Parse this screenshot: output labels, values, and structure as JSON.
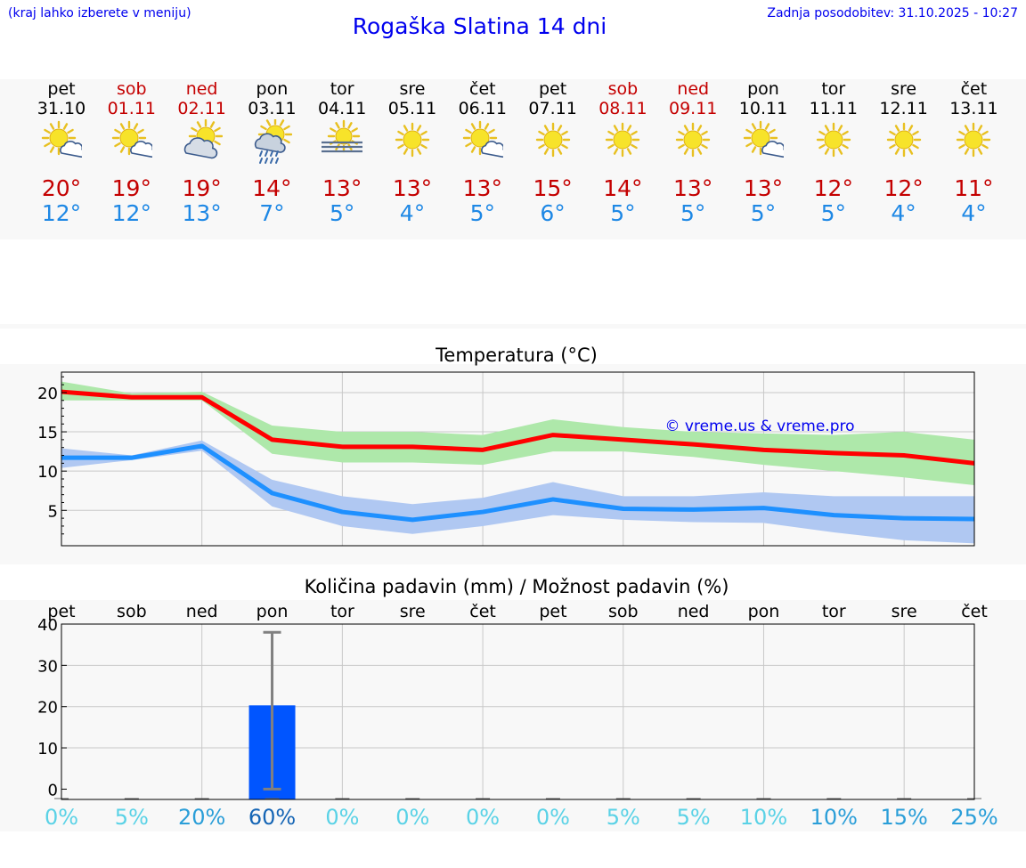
{
  "header": {
    "hint": "(kraj lahko izberete v meniju)",
    "title": "Rogaška Slatina 14 dni",
    "updated": "Zadnja posodobitev: 31.10.2025 - 10:27"
  },
  "colors": {
    "link": "#0000ee",
    "weekend": "#c40000",
    "max_temp": "#c40000",
    "min_temp": "#1e88e5",
    "max_line": "#ff0000",
    "min_line": "#1e90ff",
    "max_band": "#aee8aa",
    "min_band": "#b0c8f2",
    "bar": "#0055ff",
    "error_bar": "#808080"
  },
  "forecast": [
    {
      "day": "pet",
      "date": "31.10",
      "weekend": false,
      "icon": "sun-cloud-icon",
      "max": "20°",
      "min": "12°"
    },
    {
      "day": "sob",
      "date": "01.11",
      "weekend": true,
      "icon": "sun-cloud-icon",
      "max": "19°",
      "min": "12°"
    },
    {
      "day": "ned",
      "date": "02.11",
      "weekend": true,
      "icon": "cloud-sun-icon",
      "max": "19°",
      "min": "13°"
    },
    {
      "day": "pon",
      "date": "03.11",
      "weekend": false,
      "icon": "rain-sun-icon",
      "max": "14°",
      "min": "7°"
    },
    {
      "day": "tor",
      "date": "04.11",
      "weekend": false,
      "icon": "fog-sun-icon",
      "max": "13°",
      "min": "5°"
    },
    {
      "day": "sre",
      "date": "05.11",
      "weekend": false,
      "icon": "sun-icon",
      "max": "13°",
      "min": "4°"
    },
    {
      "day": "čet",
      "date": "06.11",
      "weekend": false,
      "icon": "sun-cloud-icon",
      "max": "13°",
      "min": "5°"
    },
    {
      "day": "pet",
      "date": "07.11",
      "weekend": false,
      "icon": "sun-icon",
      "max": "15°",
      "min": "6°"
    },
    {
      "day": "sob",
      "date": "08.11",
      "weekend": true,
      "icon": "sun-icon",
      "max": "14°",
      "min": "5°"
    },
    {
      "day": "ned",
      "date": "09.11",
      "weekend": true,
      "icon": "sun-icon",
      "max": "13°",
      "min": "5°"
    },
    {
      "day": "pon",
      "date": "10.11",
      "weekend": false,
      "icon": "sun-cloud-icon",
      "max": "13°",
      "min": "5°"
    },
    {
      "day": "tor",
      "date": "11.11",
      "weekend": false,
      "icon": "sun-icon",
      "max": "12°",
      "min": "5°"
    },
    {
      "day": "sre",
      "date": "12.11",
      "weekend": false,
      "icon": "sun-icon",
      "max": "12°",
      "min": "4°"
    },
    {
      "day": "čet",
      "date": "13.11",
      "weekend": false,
      "icon": "sun-icon",
      "max": "11°",
      "min": "4°"
    }
  ],
  "chart_data": [
    {
      "type": "line",
      "title": "Temperatura (°C)",
      "watermark": "© vreme.us & vreme.pro",
      "xlabel": "",
      "ylabel": "",
      "ylim": [
        0.5,
        22.6
      ],
      "yticks": [
        5,
        10,
        15,
        20
      ],
      "x": [
        0,
        1,
        2,
        3,
        4,
        5,
        6,
        7,
        8,
        9,
        10,
        11,
        12,
        13
      ],
      "series": [
        {
          "name": "max",
          "values": [
            20.1,
            19.4,
            19.4,
            14.0,
            13.1,
            13.1,
            12.7,
            14.6,
            14.0,
            13.4,
            12.7,
            12.3,
            12.0,
            11.0
          ],
          "band_low": [
            19.0,
            19.0,
            19.0,
            12.2,
            11.1,
            11.1,
            10.8,
            12.5,
            12.5,
            11.8,
            10.8,
            10.0,
            9.2,
            8.2
          ],
          "band_high": [
            21.4,
            19.9,
            20.1,
            15.8,
            15.0,
            15.0,
            14.6,
            16.6,
            15.6,
            15.0,
            14.8,
            14.6,
            15.0,
            14.0
          ]
        },
        {
          "name": "min",
          "values": [
            11.7,
            11.7,
            13.2,
            7.2,
            4.8,
            3.8,
            4.8,
            6.4,
            5.2,
            5.1,
            5.3,
            4.4,
            4.0,
            3.9
          ],
          "band_low": [
            10.4,
            11.4,
            12.6,
            5.5,
            3.0,
            2.0,
            3.0,
            4.4,
            3.8,
            3.5,
            3.4,
            2.2,
            1.2,
            0.8
          ],
          "band_high": [
            12.9,
            12.0,
            13.9,
            8.9,
            6.8,
            5.8,
            6.6,
            8.6,
            6.8,
            6.8,
            7.3,
            6.8,
            6.8,
            6.8
          ]
        }
      ]
    },
    {
      "type": "bar",
      "title": "Količina padavin (mm) / Možnost padavin (%)",
      "categories": [
        "pet",
        "sob",
        "ned",
        "pon",
        "tor",
        "sre",
        "čet",
        "pet",
        "sob",
        "ned",
        "pon",
        "tor",
        "sre",
        "čet"
      ],
      "ylim": [
        -2.5,
        40
      ],
      "yticks": [
        0,
        10,
        20,
        30,
        40
      ],
      "values": [
        0,
        0,
        0,
        20.3,
        0,
        0,
        0,
        0,
        0,
        0,
        0,
        0,
        0,
        0
      ],
      "error_high": [
        0,
        0,
        0,
        38,
        0,
        0,
        0,
        0,
        0,
        0,
        0,
        0,
        0,
        0
      ],
      "error_low": [
        0,
        0,
        0,
        0,
        0,
        0,
        0,
        0,
        0,
        0,
        0,
        0,
        0,
        0
      ],
      "probability": [
        "0%",
        "5%",
        "20%",
        "60%",
        "0%",
        "0%",
        "0%",
        "0%",
        "5%",
        "5%",
        "10%",
        "10%",
        "15%",
        "25%"
      ],
      "probability_colors": [
        "#5ad2e6",
        "#5ad2e6",
        "#2a9ed8",
        "#1565b5",
        "#5ad2e6",
        "#5ad2e6",
        "#5ad2e6",
        "#5ad2e6",
        "#5ad2e6",
        "#5ad2e6",
        "#5ad2e6",
        "#2a9ed8",
        "#2a9ed8",
        "#2a9ed8"
      ]
    }
  ]
}
